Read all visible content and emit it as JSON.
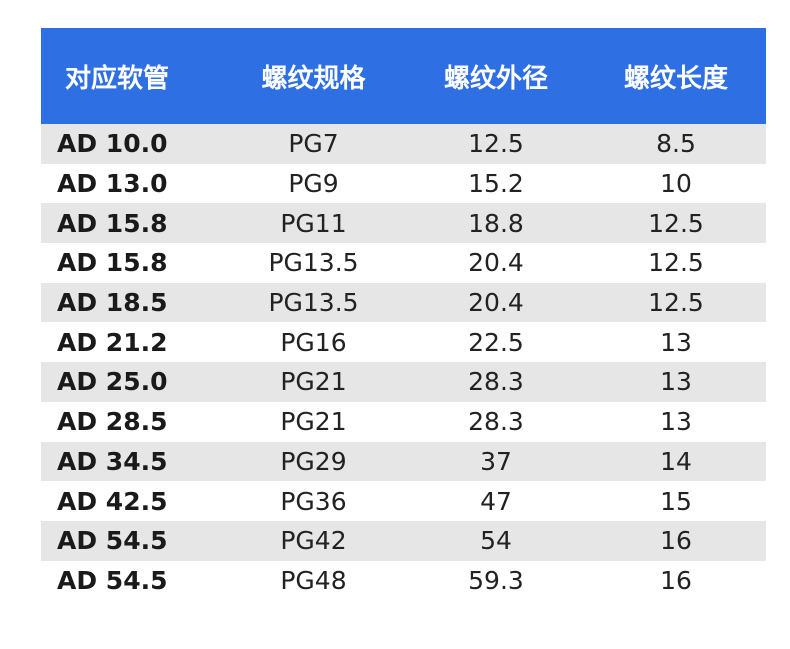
{
  "table": {
    "headers": [
      "对应软管",
      "螺纹规格",
      "螺纹外径",
      "螺纹长度"
    ],
    "rows": [
      [
        "AD 10.0",
        "PG7",
        "12.5",
        "8.5"
      ],
      [
        "AD 13.0",
        "PG9",
        "15.2",
        "10"
      ],
      [
        "AD 15.8",
        "PG11",
        "18.8",
        "12.5"
      ],
      [
        "AD 15.8",
        "PG13.5",
        "20.4",
        "12.5"
      ],
      [
        "AD 18.5",
        "PG13.5",
        "20.4",
        "12.5"
      ],
      [
        "AD 21.2",
        "PG16",
        "22.5",
        "13"
      ],
      [
        "AD 25.0",
        "PG21",
        "28.3",
        "13"
      ],
      [
        "AD 28.5",
        "PG21",
        "28.3",
        "13"
      ],
      [
        "AD 34.5",
        "PG29",
        "37",
        "14"
      ],
      [
        "AD 42.5",
        "PG36",
        "47",
        "15"
      ],
      [
        "AD 54.5",
        "PG42",
        "54",
        "16"
      ],
      [
        "AD 54.5",
        "PG48",
        "59.3",
        "16"
      ]
    ],
    "colors": {
      "header_bg": "#2f6fe4",
      "row_alt_bg": "#e6e6e6"
    }
  }
}
